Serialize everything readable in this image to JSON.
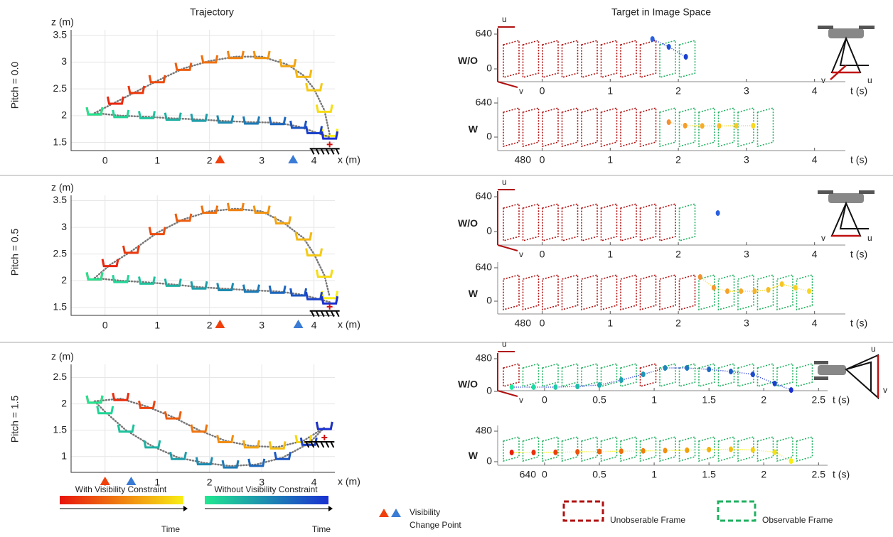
{
  "headers": {
    "left": "Trajectory",
    "right": "Target in Image Space"
  },
  "chart_data": [
    {
      "type": "line",
      "row_label": "Pitch = 0.0",
      "xlabel": "x (m)",
      "ylabel": "z (m)",
      "xlim": [
        -0.65,
        4.4
      ],
      "ylim": [
        1.35,
        3.6
      ],
      "xticks": [
        0,
        1,
        2,
        3,
        4
      ],
      "yticks": [
        1.5,
        2,
        2.5,
        3,
        3.5
      ],
      "grid": true,
      "series": [
        {
          "colors": [
            "#e8140c",
            "#f8ee14"
          ],
          "x": [
            -0.2,
            0.2,
            0.6,
            1.0,
            1.5,
            2.0,
            2.5,
            3.0,
            3.5,
            3.8,
            4.0,
            4.2,
            4.3
          ],
          "values": [
            2.05,
            2.25,
            2.45,
            2.65,
            2.88,
            3.02,
            3.1,
            3.1,
            2.95,
            2.75,
            2.5,
            2.1,
            1.65
          ]
        },
        {
          "colors": [
            "#20e890",
            "#1a30d0"
          ],
          "x": [
            -0.2,
            0.3,
            0.8,
            1.3,
            1.8,
            2.3,
            2.8,
            3.3,
            3.7,
            4.0,
            4.3
          ],
          "values": [
            2.05,
            2.0,
            1.98,
            1.95,
            1.93,
            1.9,
            1.88,
            1.87,
            1.8,
            1.7,
            1.6
          ]
        }
      ],
      "change_points": [
        {
          "color": "#f0400c",
          "x": 2.2
        },
        {
          "color": "#3a7bd5",
          "x": 3.6
        }
      ]
    },
    {
      "type": "line",
      "row_label": "Pitch = 0.5",
      "xlabel": "x (m)",
      "ylabel": "z (m)",
      "xlim": [
        -0.65,
        4.4
      ],
      "ylim": [
        1.35,
        3.6
      ],
      "xticks": [
        0,
        1,
        2,
        3,
        4
      ],
      "yticks": [
        1.5,
        2,
        2.5,
        3,
        3.5
      ],
      "grid": true,
      "series": [
        {
          "colors": [
            "#e8140c",
            "#f8ee14"
          ],
          "x": [
            -0.2,
            0.1,
            0.5,
            1.0,
            1.5,
            2.0,
            2.5,
            3.0,
            3.4,
            3.8,
            4.0,
            4.2,
            4.3
          ],
          "values": [
            2.05,
            2.3,
            2.55,
            2.9,
            3.15,
            3.3,
            3.35,
            3.3,
            3.1,
            2.8,
            2.5,
            2.1,
            1.7
          ]
        },
        {
          "colors": [
            "#20e890",
            "#1a30d0"
          ],
          "x": [
            -0.2,
            0.3,
            0.8,
            1.3,
            1.8,
            2.3,
            2.8,
            3.3,
            3.7,
            4.0,
            4.3
          ],
          "values": [
            2.05,
            2.0,
            1.97,
            1.93,
            1.88,
            1.85,
            1.82,
            1.8,
            1.75,
            1.68,
            1.6
          ]
        }
      ],
      "change_points": [
        {
          "color": "#f0400c",
          "x": 2.2
        },
        {
          "color": "#3a7bd5",
          "x": 3.7
        }
      ]
    },
    {
      "type": "line",
      "row_label": "Pitch = 1.5",
      "xlabel": "x (m)",
      "ylabel": "z (m)",
      "xlim": [
        -0.65,
        4.4
      ],
      "ylim": [
        0.7,
        2.75
      ],
      "xticks": [
        0,
        1,
        2,
        3,
        4
      ],
      "yticks": [
        1,
        1.5,
        2,
        2.5
      ],
      "grid": true,
      "series": [
        {
          "colors": [
            "#e8140c",
            "#f8ee14"
          ],
          "x": [
            -0.2,
            0.3,
            0.8,
            1.3,
            1.8,
            2.3,
            2.8,
            3.3,
            3.8,
            4.2
          ],
          "values": [
            2.05,
            2.1,
            1.95,
            1.75,
            1.5,
            1.3,
            1.2,
            1.18,
            1.3,
            1.55
          ]
        },
        {
          "colors": [
            "#20e890",
            "#1a30d0"
          ],
          "x": [
            -0.2,
            0,
            0.4,
            0.9,
            1.4,
            1.9,
            2.4,
            2.9,
            3.4,
            3.9,
            4.2
          ],
          "values": [
            2.05,
            1.85,
            1.5,
            1.2,
            0.98,
            0.88,
            0.82,
            0.85,
            0.98,
            1.25,
            1.55
          ]
        }
      ],
      "change_points": [
        {
          "color": "#f0400c",
          "x": 0
        },
        {
          "color": "#3a7bd5",
          "x": 0.5
        }
      ]
    },
    {
      "type": "image",
      "label": "W/O",
      "label_color": "#4a8fd0",
      "u_label": "u",
      "v_label": "v",
      "xlabel": "t (s)",
      "xlim": [
        -0.6,
        4.4
      ],
      "xticks": [
        0,
        1,
        2,
        3,
        4
      ],
      "ylim": [
        0,
        640
      ],
      "yticks": [
        0,
        640
      ],
      "series": [
        {
          "colors": [
            "#2a60e0",
            "#1a40d0"
          ],
          "x": [
            1.62,
            1.86,
            2.11
          ],
          "values": [
            549,
            405,
            222
          ]
        }
      ]
    },
    {
      "type": "image",
      "label": "W",
      "label_color": "#f07a20",
      "xlabel": "t (s)",
      "xlim": [
        -0.6,
        4.4
      ],
      "xticks": [
        0,
        1,
        2,
        3,
        4
      ],
      "ylim": [
        0,
        640
      ],
      "yticks": [
        0,
        640
      ],
      "vticks": [
        480
      ],
      "series": [
        {
          "colors": [
            "#f49030",
            "#f8d820"
          ],
          "x": [
            1.86,
            2.1,
            2.35,
            2.6,
            2.85,
            3.1
          ],
          "values": [
            280,
            215,
            210,
            210,
            212,
            215
          ]
        }
      ]
    },
    {
      "type": "image",
      "label": "W/O",
      "label_color": "#4a8fd0",
      "u_label": "u",
      "v_label": "v",
      "xlabel": "t (s)",
      "xlim": [
        -0.6,
        4.4
      ],
      "xticks": [
        0,
        1,
        2,
        3,
        4
      ],
      "ylim": [
        0,
        640
      ],
      "yticks": [
        0,
        640
      ],
      "series": [
        {
          "colors": [
            "#2a60e0",
            "#1a40d0"
          ],
          "x": [
            2.58
          ],
          "values": [
            340
          ]
        }
      ]
    },
    {
      "type": "image",
      "label": "W",
      "label_color": "#f07a20",
      "xlabel": "t (s)",
      "xlim": [
        -0.6,
        4.4
      ],
      "xticks": [
        0,
        1,
        2,
        3,
        4
      ],
      "ylim": [
        0,
        640
      ],
      "yticks": [
        0,
        640
      ],
      "vticks": [
        480
      ],
      "series": [
        {
          "colors": [
            "#f49030",
            "#f8d820"
          ],
          "x": [
            2.32,
            2.52,
            2.72,
            2.92,
            3.12,
            3.32,
            3.52,
            3.72,
            3.92
          ],
          "values": [
            463,
            259,
            191,
            191,
            191,
            218,
            327,
            259,
            191
          ]
        }
      ]
    },
    {
      "type": "image",
      "label": "W/O",
      "label_color": "#4a8fd0",
      "u_label": "u",
      "v_label": "v",
      "xlabel": "t (s)",
      "xlim": [
        -0.35,
        2.55
      ],
      "xticks": [
        0,
        0.5,
        1,
        1.5,
        2,
        2.5
      ],
      "ylim": [
        0,
        480
      ],
      "yticks": [
        0,
        480
      ],
      "series": [
        {
          "colors": [
            "#20e8a0",
            "#1a30d0"
          ],
          "x": [
            -0.3,
            -0.1,
            0.1,
            0.3,
            0.5,
            0.7,
            0.9,
            1.1,
            1.3,
            1.5,
            1.7,
            1.9,
            2.1,
            2.25
          ],
          "values": [
            63,
            63,
            63,
            73,
            94,
            167,
            250,
            344,
            344,
            323,
            292,
            250,
            115,
            20
          ]
        }
      ]
    },
    {
      "type": "image",
      "label": "W",
      "label_color": "#f07a20",
      "xlabel": "t (s)",
      "xlim": [
        -0.35,
        2.55
      ],
      "xticks": [
        0,
        0.5,
        1,
        1.5,
        2,
        2.5
      ],
      "ylim": [
        0,
        480
      ],
      "yticks": [
        0,
        480
      ],
      "vticks": [
        640
      ],
      "series": [
        {
          "colors": [
            "#e8200c",
            "#f8ef10"
          ],
          "x": [
            -0.3,
            -0.1,
            0.1,
            0.3,
            0.5,
            0.7,
            0.9,
            1.1,
            1.3,
            1.5,
            1.7,
            1.9,
            2.1,
            2.25
          ],
          "values": [
            145,
            145,
            148,
            155,
            160,
            165,
            170,
            175,
            180,
            190,
            195,
            185,
            150,
            10
          ]
        }
      ]
    }
  ],
  "legend": {
    "with": "With Visibility Constraint",
    "without": "Without Visibility Constraint",
    "time": "Time",
    "change_point": [
      "Visibility",
      "Change Point"
    ],
    "unobservable": "Unobserable Frame",
    "observable": "Observable Frame",
    "unobservable_color": "#b01010",
    "observable_color": "#20b060"
  }
}
